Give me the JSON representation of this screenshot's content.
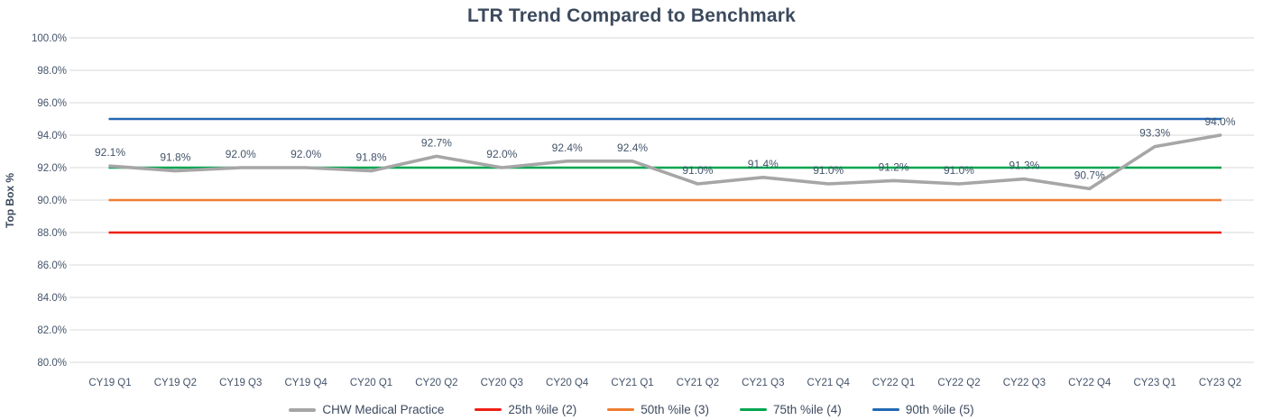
{
  "chart_data": {
    "type": "line",
    "title": "LTR Trend Compared to Benchmark",
    "ylabel": "Top Box %",
    "xlabel": "",
    "ylim": [
      80,
      100
    ],
    "ytick_step": 2,
    "ytick_labels": [
      "100.0%",
      "98.0%",
      "96.0%",
      "94.0%",
      "92.0%",
      "90.0%",
      "88.0%",
      "86.0%",
      "84.0%",
      "82.0%",
      "80.0%"
    ],
    "grid": "horizontal",
    "legend_position": "bottom",
    "categories": [
      "CY19 Q1",
      "CY19 Q2",
      "CY19 Q3",
      "CY19 Q4",
      "CY20 Q1",
      "CY20 Q2",
      "CY20 Q3",
      "CY20 Q4",
      "CY21 Q1",
      "CY21 Q2",
      "CY21 Q3",
      "CY21 Q4",
      "CY22 Q1",
      "CY22 Q2",
      "CY22 Q3",
      "CY22 Q4",
      "CY23 Q1",
      "CY23 Q2"
    ],
    "series": [
      {
        "name": "CHW Medical Practice",
        "kind": "data",
        "color": "#a6a6a6",
        "values": [
          92.1,
          91.8,
          92.0,
          92.0,
          91.8,
          92.7,
          92.0,
          92.4,
          92.4,
          91.0,
          91.4,
          91.0,
          91.2,
          91.0,
          91.3,
          90.7,
          93.3,
          94.0
        ],
        "labels": [
          "92.1%",
          "91.8%",
          "92.0%",
          "92.0%",
          "91.8%",
          "92.7%",
          "92.0%",
          "92.4%",
          "92.4%",
          "91.0%",
          "91.4%",
          "91.0%",
          "91.2%",
          "91.0%",
          "91.3%",
          "90.7%",
          "93.3%",
          "94.0%"
        ],
        "show_labels": true
      },
      {
        "name": "25th %ile (2)",
        "kind": "benchmark",
        "color": "#ee2015",
        "value": 88.0
      },
      {
        "name": "50th %ile (3)",
        "kind": "benchmark",
        "color": "#ed7d31",
        "value": 90.0
      },
      {
        "name": "75th %ile (4)",
        "kind": "benchmark",
        "color": "#00a650",
        "value": 92.0
      },
      {
        "name": "90th %ile (5)",
        "kind": "benchmark",
        "color": "#2268b4",
        "value": 95.0
      }
    ],
    "colors": {
      "title_text": "#3c4a5e",
      "axis_text": "#44546a",
      "data_label_text": "#44546a",
      "gridline": "#d9d9d9"
    }
  }
}
